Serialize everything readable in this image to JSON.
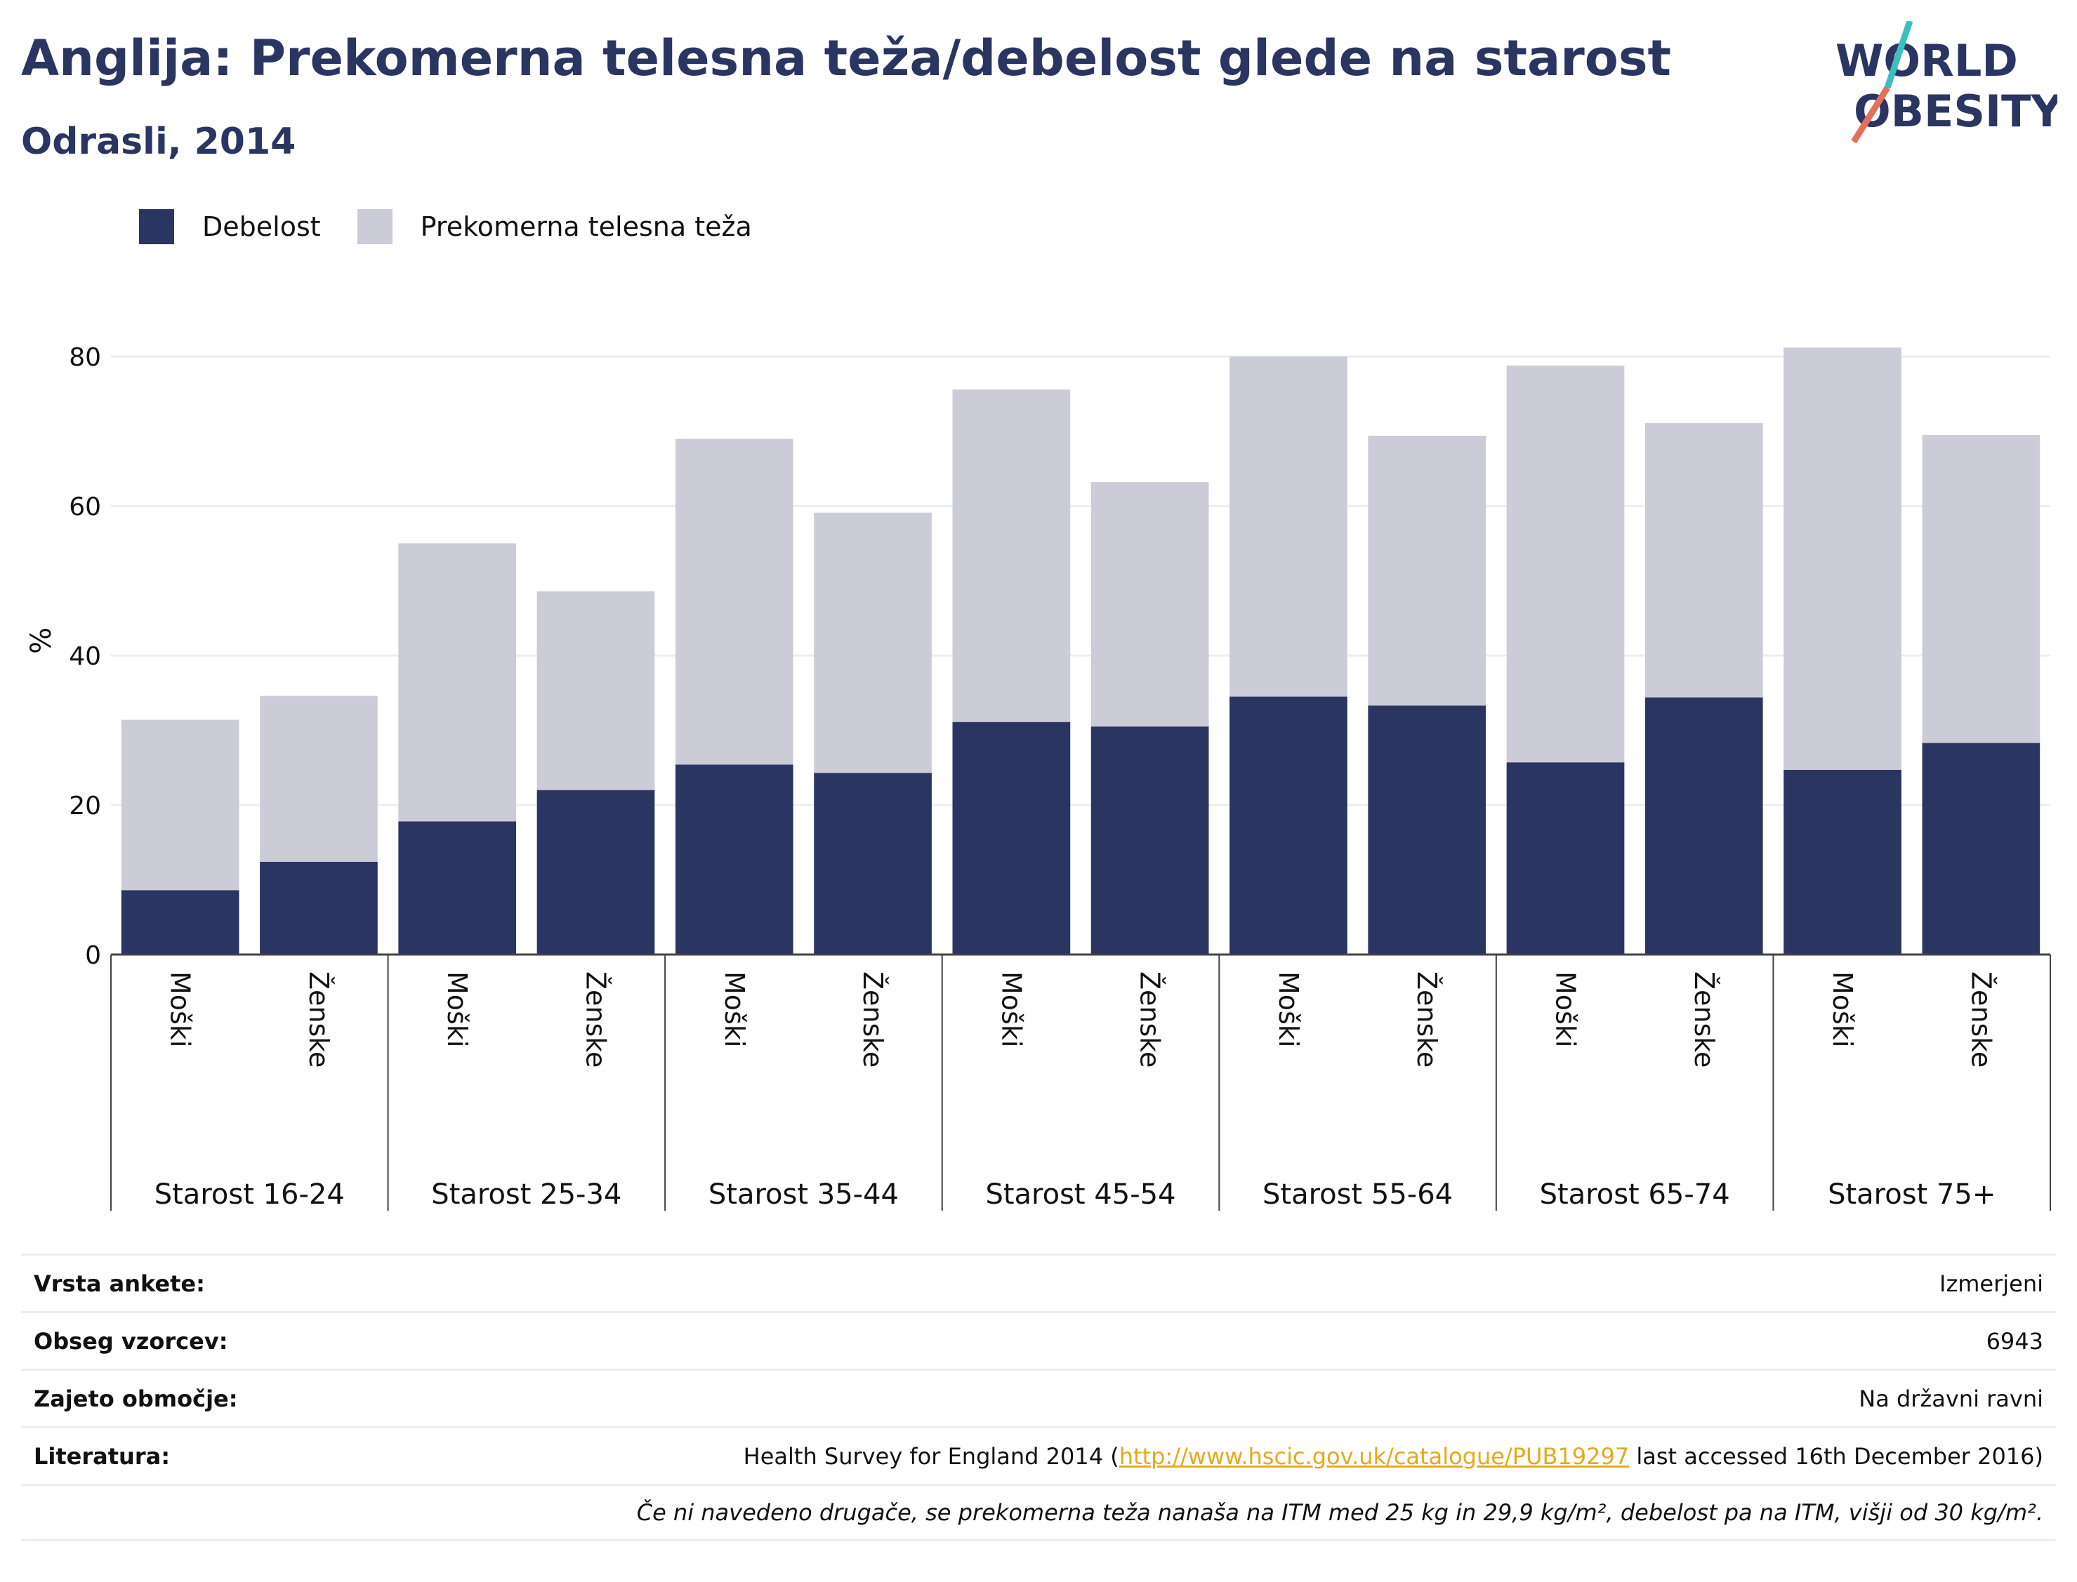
{
  "header": {
    "title": "Anglija: Prekomerna telesna teža/debelost glede na starost",
    "subtitle": "Odrasli, 2014"
  },
  "logo": {
    "line1": "WORLD",
    "line2": "OBESITY",
    "accent_teal": "#3bbfbf",
    "accent_coral": "#e2705b",
    "text_color": "#2b3562"
  },
  "legend": {
    "items": [
      {
        "label": "Debelost",
        "color": "#2b3562"
      },
      {
        "label": "Prekomerna telesna teža",
        "color": "#cbccd8"
      }
    ]
  },
  "chart_data": {
    "type": "bar",
    "stacked": true,
    "ylabel": "%",
    "ylim": [
      0,
      85
    ],
    "yticks": [
      0,
      20,
      40,
      60,
      80
    ],
    "grid": true,
    "legend_position": "top-left",
    "groups": [
      {
        "label": "Starost 16-24",
        "categories": [
          "Moški",
          "Ženske"
        ]
      },
      {
        "label": "Starost 25-34",
        "categories": [
          "Moški",
          "Ženske"
        ]
      },
      {
        "label": "Starost 35-44",
        "categories": [
          "Moški",
          "Ženske"
        ]
      },
      {
        "label": "Starost 45-54",
        "categories": [
          "Moški",
          "Ženske"
        ]
      },
      {
        "label": "Starost 55-64",
        "categories": [
          "Moški",
          "Ženske"
        ]
      },
      {
        "label": "Starost 65-74",
        "categories": [
          "Moški",
          "Ženske"
        ]
      },
      {
        "label": "Starost 75+",
        "categories": [
          "Moški",
          "Ženske"
        ]
      }
    ],
    "series": [
      {
        "name": "Debelost",
        "color": "#2b3562",
        "values": [
          8.6,
          12.4,
          17.8,
          22.0,
          25.4,
          24.3,
          31.1,
          30.5,
          34.5,
          33.3,
          25.7,
          34.4,
          24.7,
          28.3
        ]
      },
      {
        "name": "Prekomerna telesna teža",
        "color": "#cbccd8",
        "values": [
          22.8,
          22.2,
          37.2,
          26.6,
          43.6,
          34.8,
          44.5,
          32.7,
          45.5,
          36.1,
          53.1,
          36.7,
          56.5,
          41.2
        ]
      }
    ]
  },
  "info": {
    "rows": [
      {
        "label": "Vrsta ankete:",
        "value": "Izmerjeni"
      },
      {
        "label": "Obseg vzorcev:",
        "value": "6943"
      },
      {
        "label": "Zajeto območje:",
        "value": "Na državni ravni"
      }
    ],
    "literature": {
      "label": "Literatura:",
      "prefix": "Health Survey for England 2014 (",
      "link": "http://www.hscic.gov.uk/catalogue/PUB19297",
      "suffix": " last accessed 16th December 2016)"
    },
    "note": "Če ni navedeno drugače, se prekomerna teža nanaša na ITM med 25 kg in 29,9 kg/m², debelost pa na ITM, višji od 30 kg/m²."
  }
}
